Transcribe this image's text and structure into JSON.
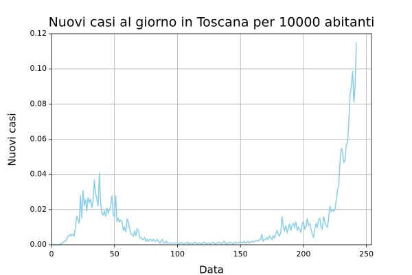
{
  "chart_data": {
    "type": "line",
    "title": "Nuovi casi al giorno in Toscana per 10000 abitanti",
    "x_label": "Data",
    "y_label": "Nuovi casi",
    "color": "#87ceeb",
    "grid": true,
    "xlim": [
      0,
      254
    ],
    "xticks": [
      0,
      50,
      100,
      150,
      200,
      250
    ],
    "ylim": [
      0,
      0.12
    ],
    "yticks": [
      {
        "value": 0,
        "label": "0.00"
      },
      {
        "value": 0.02,
        "label": "0.02"
      },
      {
        "value": 0.04,
        "label": "0.04"
      },
      {
        "value": 0.06,
        "label": "0.06"
      },
      {
        "value": 0.08,
        "label": "0.08"
      },
      {
        "value": 0.1,
        "label": "0.10"
      },
      {
        "value": 0.12,
        "label": "0.12"
      }
    ],
    "x": [
      0,
      1,
      2,
      3,
      4,
      5,
      6,
      7,
      8,
      9,
      10,
      11,
      12,
      13,
      14,
      15,
      16,
      17,
      18,
      19,
      20,
      21,
      22,
      23,
      24,
      25,
      26,
      27,
      28,
      29,
      30,
      31,
      32,
      33,
      34,
      35,
      36,
      37,
      38,
      39,
      40,
      41,
      42,
      43,
      44,
      45,
      46,
      47,
      48,
      49,
      50,
      51,
      52,
      53,
      54,
      55,
      56,
      57,
      58,
      59,
      60,
      61,
      62,
      63,
      64,
      65,
      66,
      67,
      68,
      69,
      70,
      71,
      72,
      73,
      74,
      75,
      76,
      77,
      78,
      79,
      80,
      81,
      82,
      83,
      84,
      85,
      86,
      87,
      88,
      89,
      90,
      91,
      92,
      93,
      94,
      95,
      96,
      97,
      98,
      99,
      100,
      101,
      102,
      103,
      104,
      105,
      106,
      107,
      108,
      109,
      110,
      111,
      112,
      113,
      114,
      115,
      116,
      117,
      118,
      119,
      120,
      121,
      122,
      123,
      124,
      125,
      126,
      127,
      128,
      129,
      130,
      131,
      132,
      133,
      134,
      135,
      136,
      137,
      138,
      139,
      140,
      141,
      142,
      143,
      144,
      145,
      146,
      147,
      148,
      149,
      150,
      151,
      152,
      153,
      154,
      155,
      156,
      157,
      158,
      159,
      160,
      161,
      162,
      163,
      164,
      165,
      166,
      167,
      168,
      169,
      170,
      171,
      172,
      173,
      174,
      175,
      176,
      177,
      178,
      179,
      180,
      181,
      182,
      183,
      184,
      185,
      186,
      187,
      188,
      189,
      190,
      191,
      192,
      193,
      194,
      195,
      196,
      197,
      198,
      199,
      200,
      201,
      202,
      203,
      204,
      205,
      206,
      207,
      208,
      209,
      210,
      211,
      212,
      213,
      214,
      215,
      216,
      217,
      218,
      219,
      220,
      221,
      222,
      223,
      224,
      225,
      226,
      227,
      228,
      229,
      230,
      231,
      232,
      233,
      234,
      235,
      236,
      237,
      238,
      239,
      240,
      241,
      242
    ],
    "values": [
      0,
      0,
      0,
      0,
      0,
      0,
      0,
      0.0003,
      0.0008,
      0.001,
      0.002,
      0.002,
      0.003,
      0.005,
      0.005,
      0.006,
      0.005,
      0.006,
      0.005,
      0.01,
      0.016,
      0.015,
      0.012,
      0.028,
      0.015,
      0.031,
      0.022,
      0.026,
      0.019,
      0.027,
      0.024,
      0.026,
      0.021,
      0.025,
      0.037,
      0.029,
      0.026,
      0.022,
      0.041,
      0.024,
      0.018,
      0.017,
      0.019,
      0.016,
      0.021,
      0.018,
      0.02,
      0.022,
      0.028,
      0.017,
      0.016,
      0.028,
      0.013,
      0.015,
      0.013,
      0.014,
      0.013,
      0.008,
      0.01,
      0.007,
      0.015,
      0.013,
      0.009,
      0.006,
      0.006,
      0.005,
      0.008,
      0.005,
      0.009,
      0.008,
      0.004,
      0.004,
      0.003,
      0.003,
      0.004,
      0.002,
      0.003,
      0.002,
      0.003,
      0.003,
      0.002,
      0.003,
      0.002,
      0.002,
      0.003,
      0.002,
      0.001,
      0.002,
      0.003,
      0.001,
      0.001,
      0.002,
      0.001,
      0.001,
      0.001,
      0.001,
      0.001,
      0.001,
      0.001,
      0.001,
      0.001,
      0.0005,
      0.001,
      0.0015,
      0.001,
      0.0005,
      0.001,
      0.001,
      0.0015,
      0.0005,
      0.001,
      0.001,
      0.0005,
      0.001,
      0.0015,
      0.001,
      0.0005,
      0.001,
      0.001,
      0.0005,
      0.001,
      0.0015,
      0.001,
      0.0005,
      0.001,
      0.001,
      0.0005,
      0.001,
      0.0015,
      0.001,
      0.0005,
      0.001,
      0.001,
      0.0015,
      0.001,
      0.0005,
      0.001,
      0.002,
      0.001,
      0.0005,
      0.001,
      0.001,
      0.0015,
      0.001,
      0.0005,
      0.001,
      0.0015,
      0.001,
      0.001,
      0.0015,
      0.001,
      0.0015,
      0.001,
      0.002,
      0.001,
      0.0015,
      0.002,
      0.001,
      0.0015,
      0.002,
      0.0015,
      0.002,
      0.002,
      0.0025,
      0.002,
      0.003,
      0.003,
      0.006,
      0.002,
      0.003,
      0.003,
      0.004,
      0.003,
      0.005,
      0.004,
      0.003,
      0.005,
      0.004,
      0.006,
      0.008,
      0.006,
      0.005,
      0.007,
      0.016,
      0.01,
      0.008,
      0.011,
      0.007,
      0.009,
      0.012,
      0.008,
      0.011,
      0.012,
      0.01,
      0.013,
      0.008,
      0.01,
      0.009,
      0.007,
      0.012,
      0.013,
      0.009,
      0.01,
      0.015,
      0.011,
      0.012,
      0.009,
      0.006,
      0.004,
      0.009,
      0.012,
      0.01,
      0.014,
      0.015,
      0.01,
      0.009,
      0.016,
      0.013,
      0.011,
      0.01,
      0.015,
      0.022,
      0.019,
      0.02,
      0.019,
      0.02,
      0.025,
      0.031,
      0.034,
      0.047,
      0.055,
      0.053,
      0.047,
      0.048,
      0.057,
      0.058,
      0.07,
      0.085,
      0.09,
      0.099,
      0.081,
      0.09,
      0.115
    ]
  }
}
